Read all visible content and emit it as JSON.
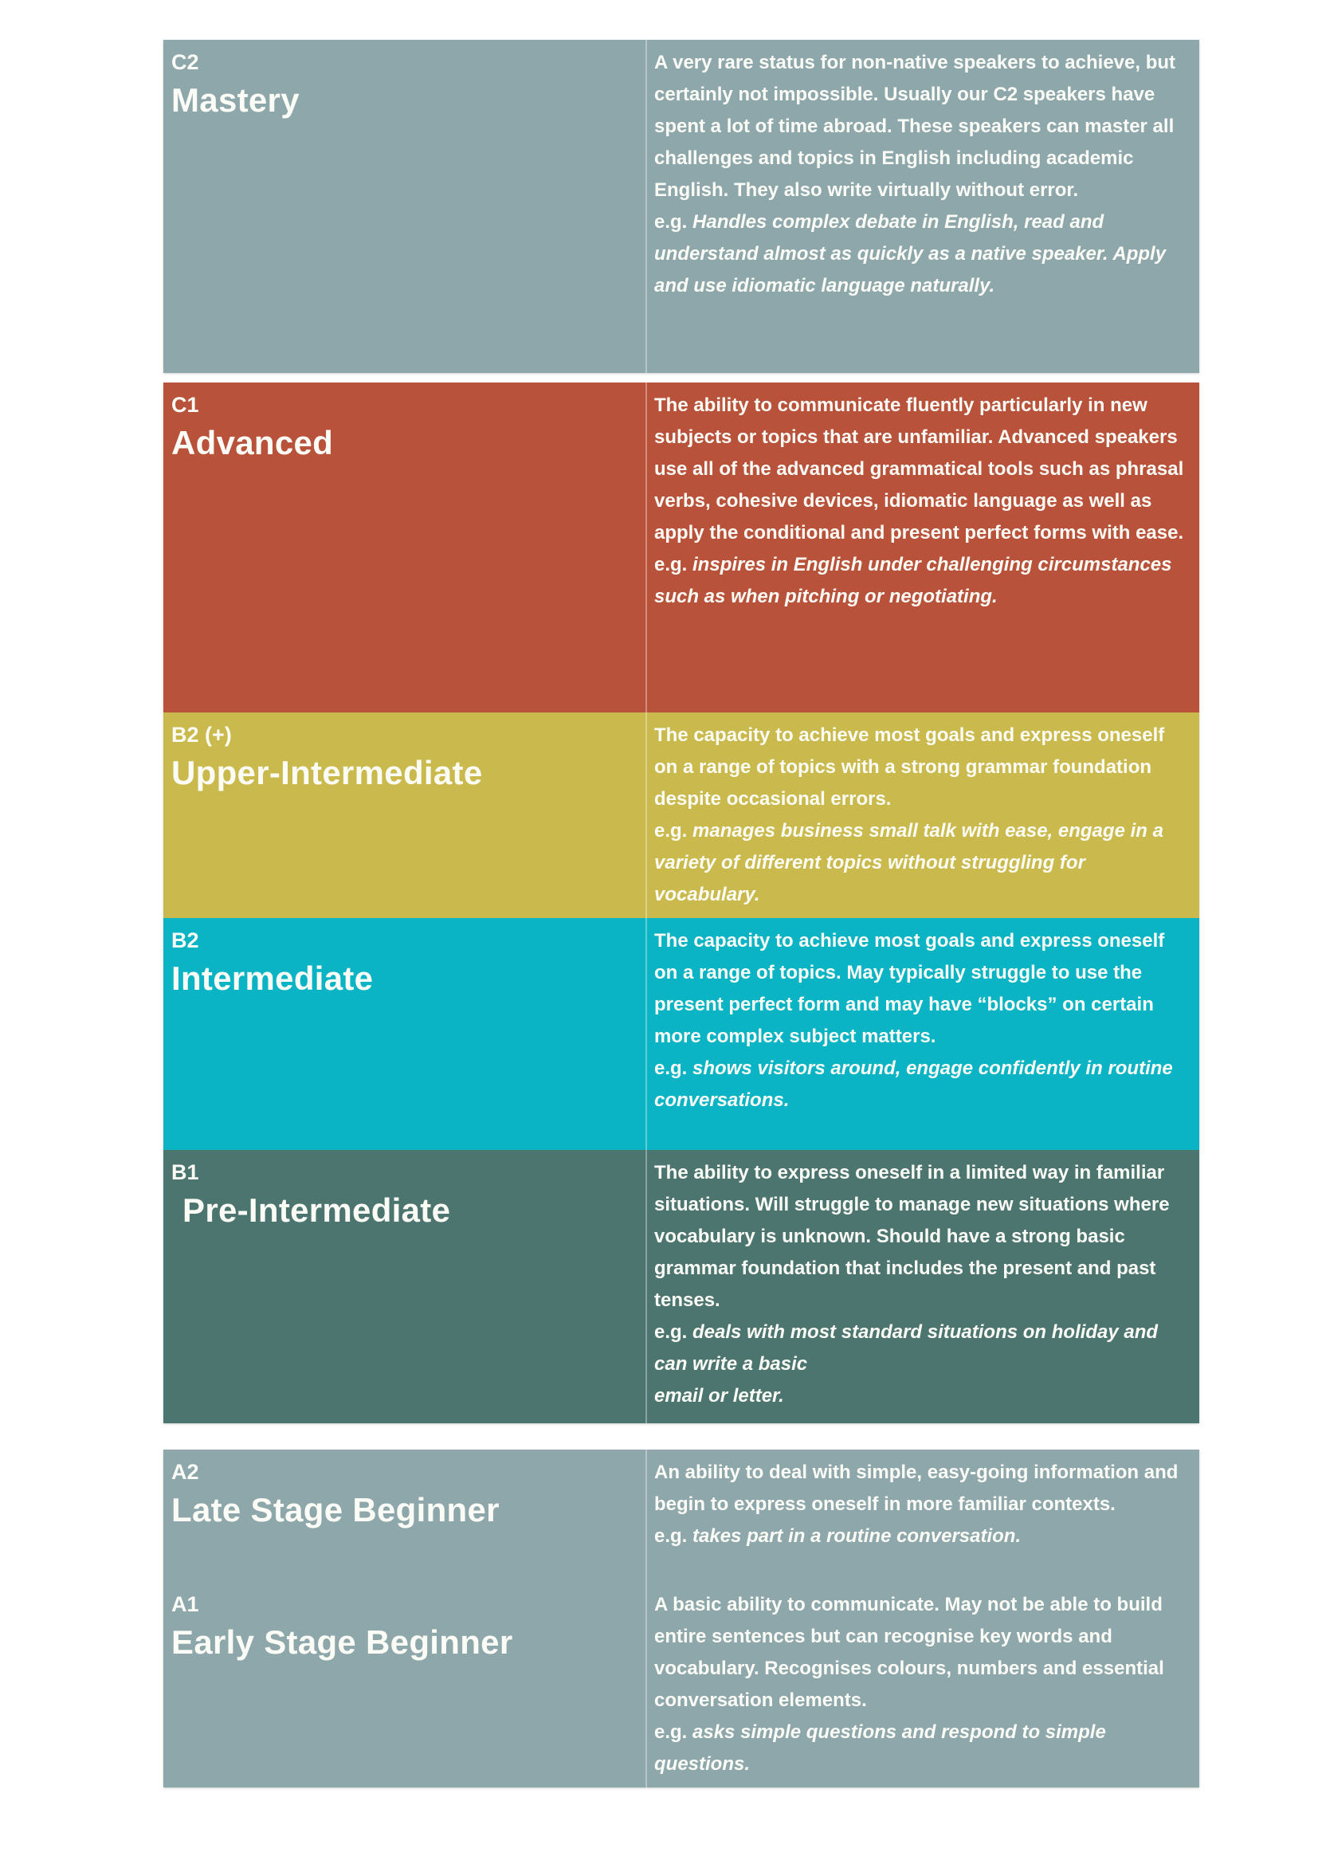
{
  "table": {
    "text_color": "#fcfcf7",
    "rows": [
      {
        "code": "C2",
        "name": "Mastery",
        "bg": "#8ea7ab",
        "description": "A very rare status for non-native speakers to achieve, but certainly not impossible. Usually our C2 speakers have spent a lot of time abroad. These speakers can master all challenges and topics in English including academic English. They also write virtually without error.",
        "example_prefix": "e.g.",
        "example": "Handles complex debate in English, read and understand almost as quickly as a native speaker. Apply and use idiomatic language naturally."
      },
      {
        "code": "C1",
        "name": "Advanced",
        "bg": "#b8523a",
        "description": "The ability to communicate fluently particularly in new subjects or topics that are unfamiliar. Advanced speakers use all of the advanced grammatical tools such as phrasal verbs, cohesive devices, idiomatic language as well as apply the conditional and present perfect forms with ease.",
        "example_prefix": "e.g.",
        "example": "inspires in English under challenging circumstances such as when pitching or negotiating."
      },
      {
        "code": "B2 (+)",
        "name": "Upper-Intermediate",
        "bg": "#caba4d",
        "description": "The capacity to achieve most goals and express oneself on a range of topics with a strong grammar foundation despite occasional errors.",
        "example_prefix": "e.g.",
        "example": "manages business small talk with ease, engage in a variety of different topics without struggling for vocabulary."
      },
      {
        "code": "B2",
        "name": "Intermediate",
        "bg": "#0ab4c4",
        "description": "The capacity to achieve most goals and express oneself on a range of topics. May typically struggle to use the present perfect form and may have “blocks” on certain more complex subject matters.",
        "example_prefix": "e.g.",
        "example": "shows visitors around, engage confidently in routine conversations."
      },
      {
        "code": "B1",
        "name": "Pre-Intermediate",
        "bg": "#4d7570",
        "description": "The ability to express oneself in a limited way in familiar situations. Will struggle to manage new situations where vocabulary is unknown. Should have a strong basic grammar foundation that includes the present and past tenses.",
        "example_prefix": "e.g.",
        "example": "deals with most standard situations on holiday and can write a basic\nemail or letter."
      },
      {
        "code": "A2",
        "name": "Late Stage Beginner",
        "bg": "#8ea7ab",
        "description": "An ability to deal with simple, easy-going information and begin to express oneself in more familiar contexts.",
        "example_prefix": "e.g.",
        "example": "takes part in a routine conversation."
      },
      {
        "code": "A1",
        "name": "Early Stage Beginner",
        "bg": "#8ea7ab",
        "description": "A basic ability to communicate. May not be able to build entire sentences but can recognise key words and vocabulary. Recognises colours, numbers and essential conversation elements.",
        "example_prefix": "e.g.",
        "example": "asks simple questions and respond to simple questions."
      }
    ]
  }
}
